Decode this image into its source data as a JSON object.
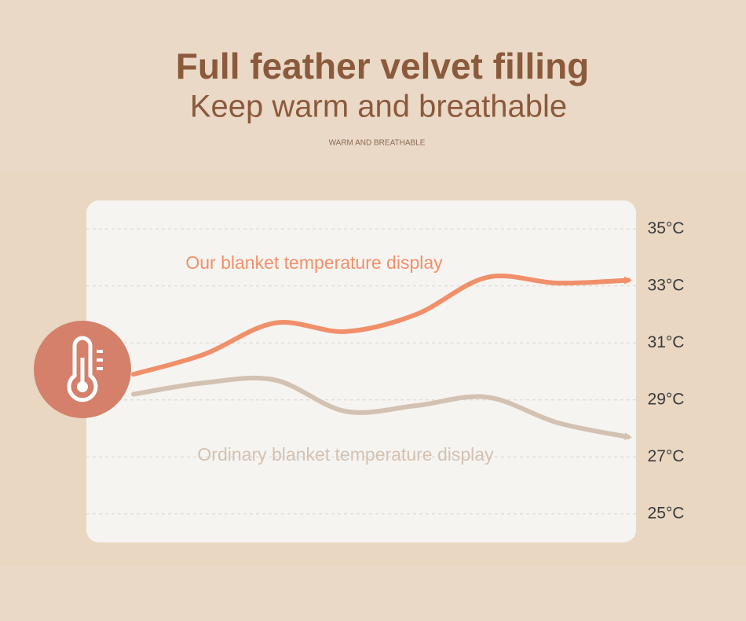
{
  "chart_data": {
    "type": "line",
    "title": "Full feather velvet filling",
    "subtitle": "Keep warm and breathable",
    "caption": "WARM AND BREATHABLE",
    "categories": [
      null,
      null,
      null,
      null,
      null,
      null,
      null,
      null
    ],
    "series": [
      {
        "name": "Our blanket temperature display",
        "color": "#f0906a",
        "values": [
          29.9,
          30.6,
          31.7,
          31.4,
          32.0,
          33.3,
          33.1,
          33.2
        ]
      },
      {
        "name": "Ordinary blanket temperature display",
        "color": "#d3c2b2",
        "values": [
          29.2,
          29.6,
          29.7,
          28.6,
          28.8,
          29.1,
          28.2,
          27.7
        ]
      }
    ],
    "ylim": [
      24,
      36
    ],
    "yticks": [
      {
        "value": 35,
        "label": "35°C"
      },
      {
        "value": 33,
        "label": "33°C"
      },
      {
        "value": 31,
        "label": "31°C"
      },
      {
        "value": 29,
        "label": "29°C"
      },
      {
        "value": 27,
        "label": "27°C"
      },
      {
        "value": 25,
        "label": "25°C"
      }
    ],
    "grid": true
  }
}
